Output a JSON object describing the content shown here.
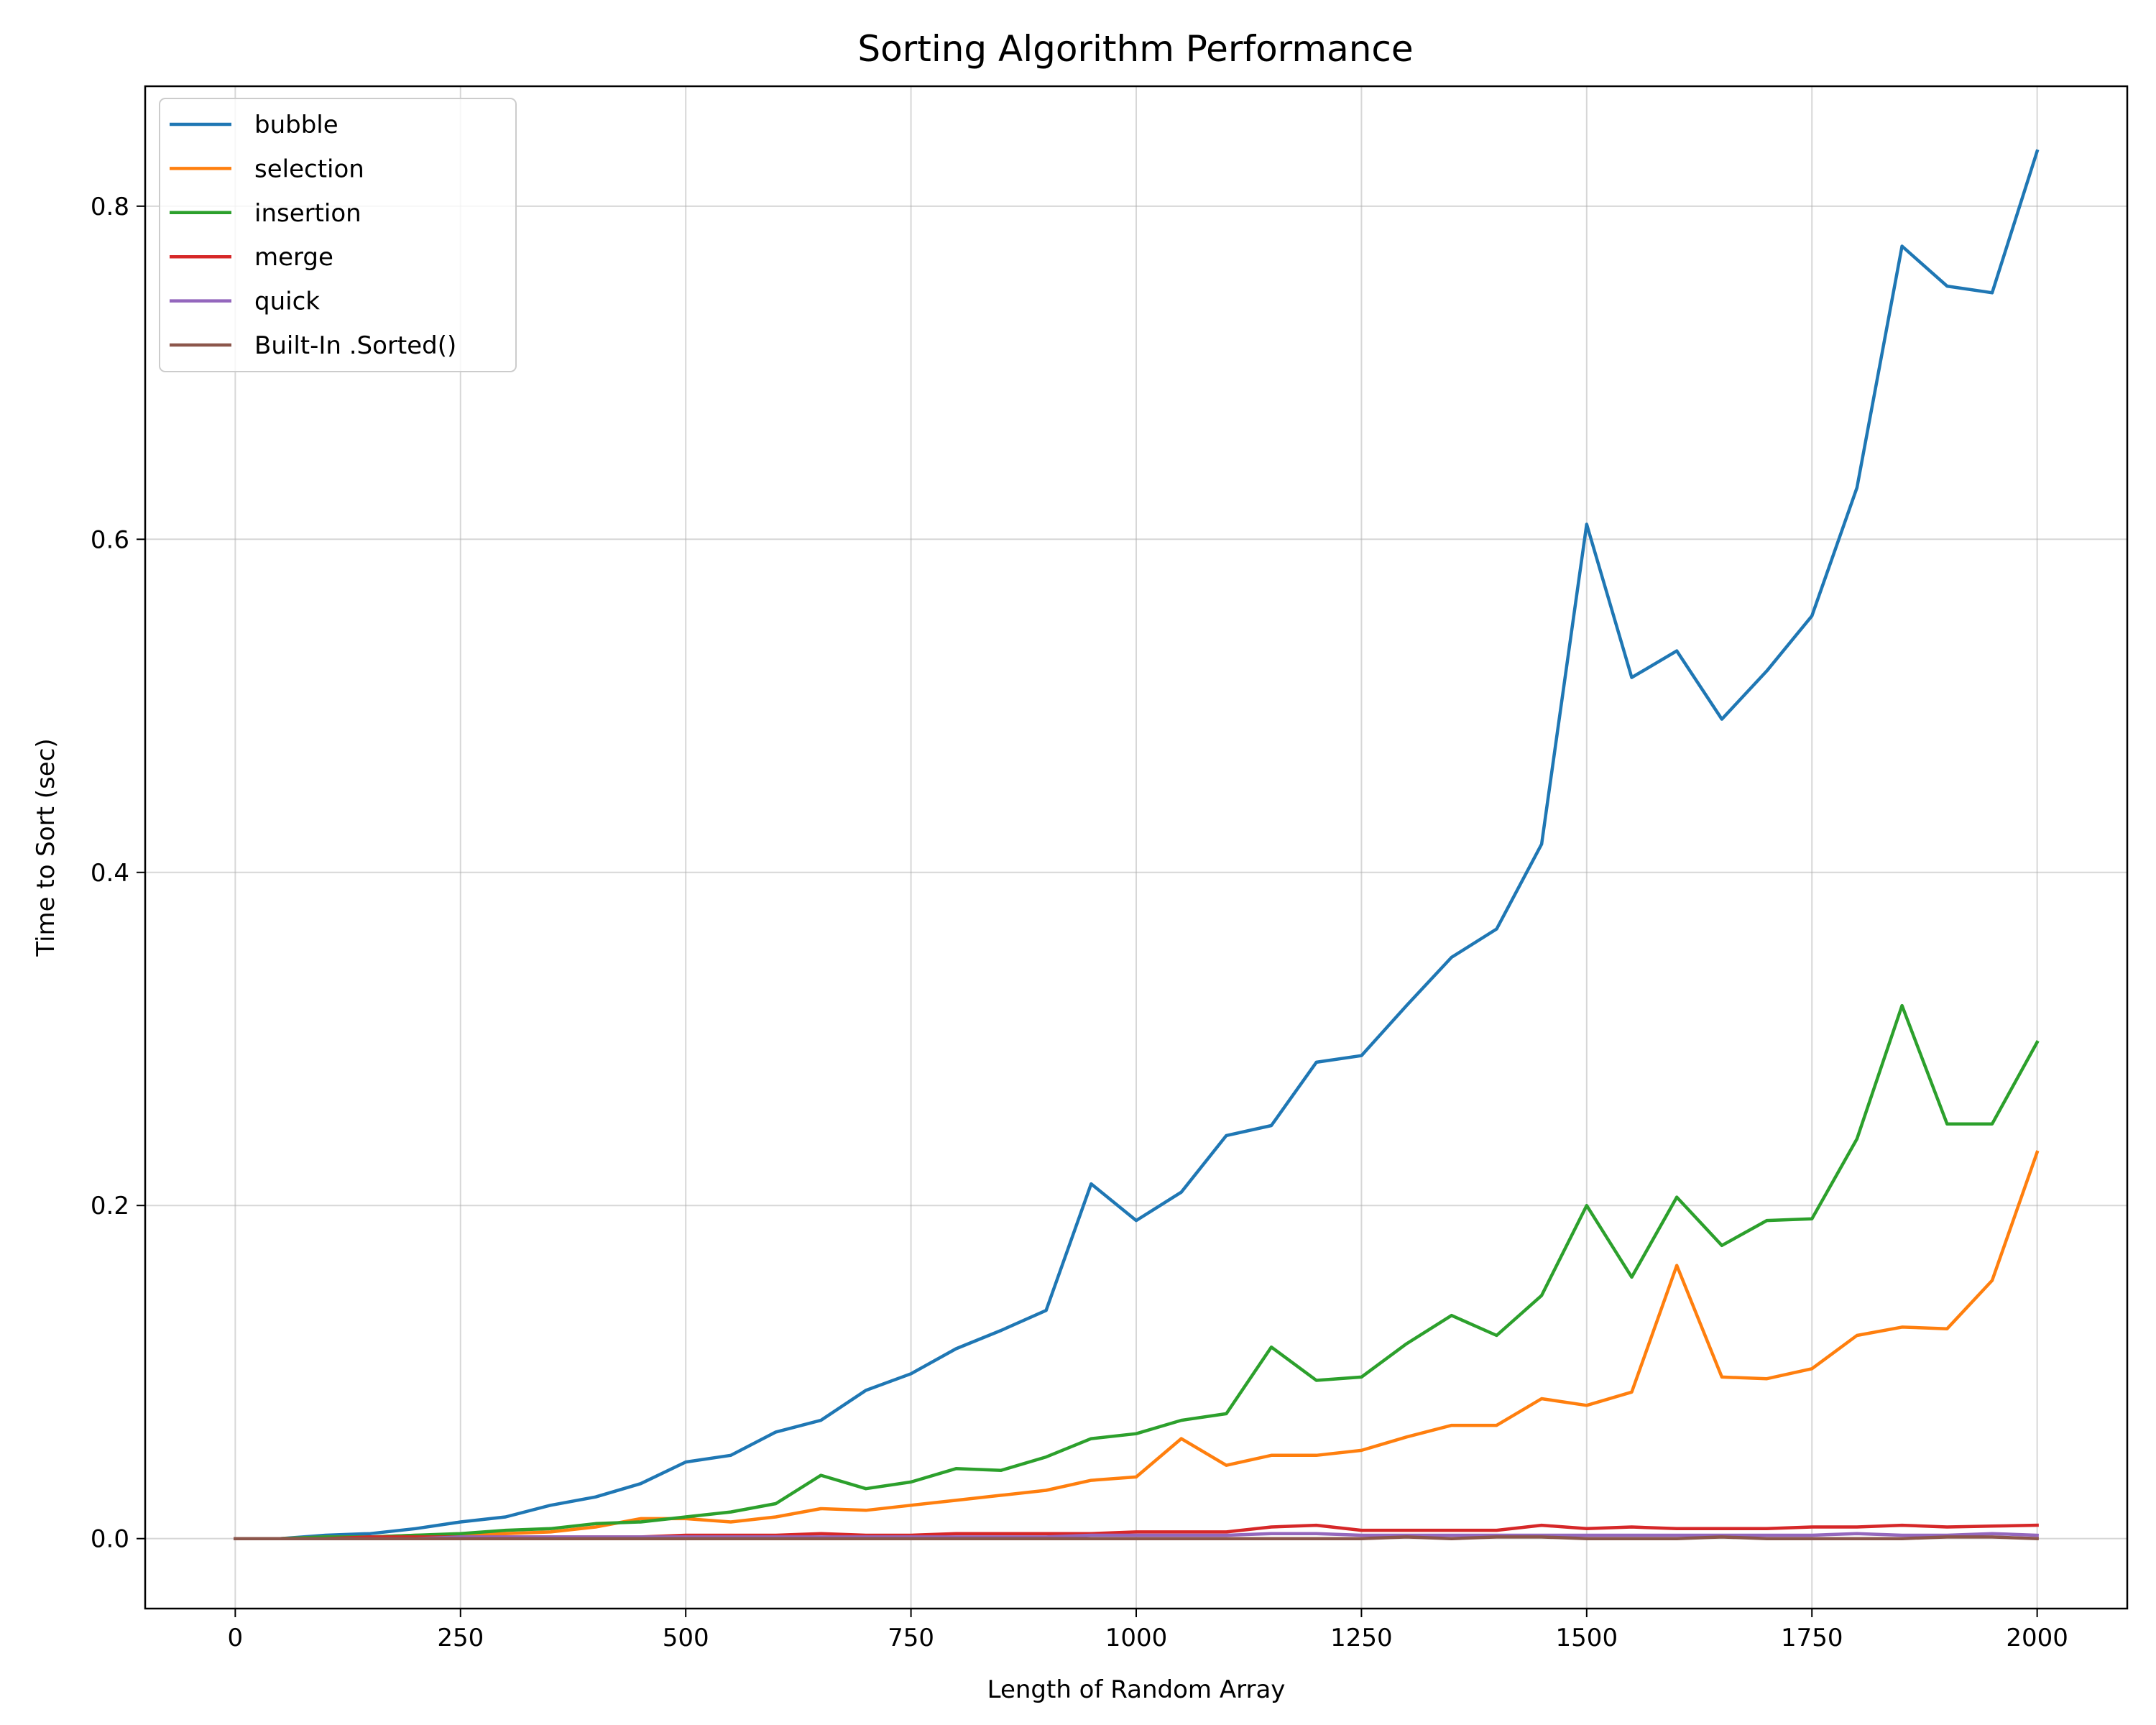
{
  "chart_data": {
    "type": "line",
    "title": "Sorting Algorithm Performance",
    "xlabel": "Length of Random Array",
    "ylabel": "Time to Sort (sec)",
    "xlim": [
      -100,
      2100
    ],
    "ylim": [
      -0.042,
      0.872
    ],
    "xticks": [
      0,
      250,
      500,
      750,
      1000,
      1250,
      1500,
      1750,
      2000
    ],
    "yticks": [
      0.0,
      0.2,
      0.4,
      0.6,
      0.8
    ],
    "ytick_labels": [
      "0.0",
      "0.2",
      "0.4",
      "0.6",
      "0.8"
    ],
    "grid": true,
    "legend_position": "top-left",
    "x": [
      0,
      50,
      100,
      150,
      200,
      250,
      300,
      350,
      400,
      450,
      500,
      550,
      600,
      650,
      700,
      750,
      800,
      850,
      900,
      950,
      1000,
      1050,
      1100,
      1150,
      1200,
      1250,
      1300,
      1350,
      1400,
      1450,
      1500,
      1550,
      1600,
      1650,
      1700,
      1750,
      1800,
      1850,
      1900,
      1950,
      2000
    ],
    "series": [
      {
        "name": "bubble",
        "color": "#1f77b4",
        "values": [
          0,
          0,
          0.002,
          0.003,
          0.006,
          0.01,
          0.013,
          0.02,
          0.025,
          0.033,
          0.046,
          0.05,
          0.064,
          0.071,
          0.089,
          0.099,
          0.114,
          0.125,
          0.137,
          0.213,
          0.191,
          0.208,
          0.242,
          0.248,
          0.286,
          0.29,
          0.32,
          0.349,
          0.366,
          0.417,
          0.609,
          0.517,
          0.533,
          0.492,
          0.521,
          0.554,
          0.631,
          0.776,
          0.752,
          0.748,
          0.833
        ]
      },
      {
        "name": "selection",
        "color": "#ff7f0e",
        "values": [
          0,
          0,
          0.001,
          0.001,
          0.002,
          0.002,
          0.003,
          0.004,
          0.007,
          0.012,
          0.012,
          0.01,
          0.013,
          0.018,
          0.017,
          0.02,
          0.023,
          0.026,
          0.029,
          0.035,
          0.037,
          0.06,
          0.044,
          0.05,
          0.05,
          0.053,
          0.061,
          0.068,
          0.068,
          0.084,
          0.08,
          0.088,
          0.164,
          0.097,
          0.096,
          0.102,
          0.122,
          0.127,
          0.126,
          0.155,
          0.232
        ]
      },
      {
        "name": "insertion",
        "color": "#2ca02c",
        "values": [
          0,
          0,
          0.001,
          0.001,
          0.002,
          0.003,
          0.005,
          0.006,
          0.009,
          0.01,
          0.013,
          0.016,
          0.021,
          0.038,
          0.03,
          0.034,
          0.042,
          0.041,
          0.049,
          0.06,
          0.063,
          0.071,
          0.075,
          0.115,
          0.095,
          0.097,
          0.117,
          0.134,
          0.122,
          0.146,
          0.2,
          0.157,
          0.205,
          0.176,
          0.191,
          0.192,
          0.24,
          0.32,
          0.249,
          0.249,
          0.298
        ]
      },
      {
        "name": "merge",
        "color": "#d62728",
        "values": [
          0,
          0,
          0,
          0.001,
          0.001,
          0.001,
          0.001,
          0.001,
          0.001,
          0.001,
          0.002,
          0.002,
          0.002,
          0.003,
          0.002,
          0.002,
          0.003,
          0.003,
          0.003,
          0.003,
          0.004,
          0.004,
          0.004,
          0.007,
          0.008,
          0.005,
          0.005,
          0.005,
          0.005,
          0.008,
          0.006,
          0.007,
          0.006,
          0.006,
          0.006,
          0.007,
          0.007,
          0.008,
          0.007,
          0.0075,
          0.008
        ]
      },
      {
        "name": "quick",
        "color": "#9467bd",
        "values": [
          0,
          0,
          0,
          0,
          0,
          0.001,
          0.001,
          0.001,
          0.001,
          0.001,
          0.001,
          0.001,
          0.001,
          0.001,
          0.001,
          0.001,
          0.001,
          0.001,
          0.001,
          0.002,
          0.002,
          0.002,
          0.002,
          0.003,
          0.003,
          0.002,
          0.002,
          0.002,
          0.002,
          0.002,
          0.002,
          0.002,
          0.002,
          0.002,
          0.002,
          0.002,
          0.003,
          0.002,
          0.002,
          0.003,
          0.002
        ]
      },
      {
        "name": "Built-In .Sorted()",
        "color": "#8c564b",
        "values": [
          0,
          0,
          0,
          0,
          0,
          0,
          0,
          0,
          0,
          0,
          0,
          0,
          0,
          0,
          0,
          0,
          0,
          0,
          0,
          0,
          0,
          0,
          0,
          0,
          0,
          0,
          0.001,
          0,
          0.001,
          0.001,
          0,
          0,
          0,
          0.001,
          0,
          0,
          0,
          0,
          0.001,
          0.001,
          0
        ]
      }
    ]
  }
}
